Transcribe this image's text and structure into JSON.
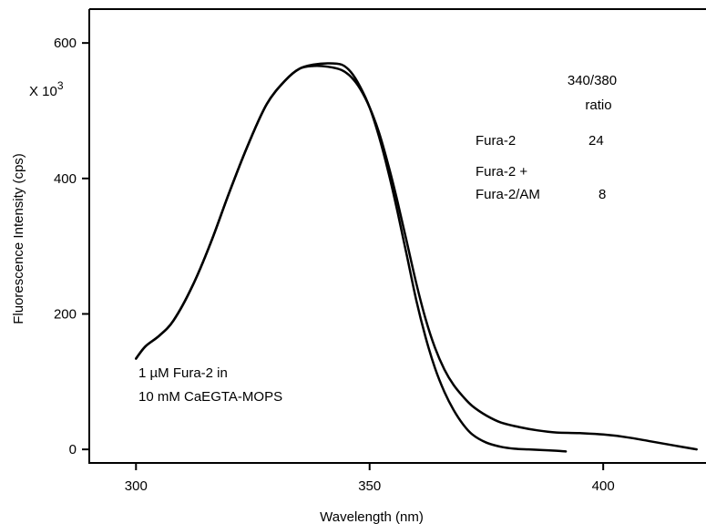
{
  "chart_data": {
    "type": "line",
    "xlabel": "Wavelength  (nm)",
    "ylabel": "Fluorescence Intensity (cps)",
    "y_multiplier_label": "X 10",
    "y_multiplier_exp": "3",
    "xlim": [
      290,
      422
    ],
    "ylim": [
      -20,
      650
    ],
    "x_ticks": [
      300,
      350,
      400
    ],
    "x_tick_labels": [
      "300",
      "350",
      "400"
    ],
    "y_ticks": [
      0,
      200,
      400,
      600
    ],
    "y_tick_labels": [
      "0",
      "200",
      "400",
      "600"
    ],
    "grid": false,
    "series": [
      {
        "x": [
          300,
          302,
          305,
          308,
          312,
          316,
          320,
          324,
          328,
          332,
          335,
          338,
          341,
          344,
          346,
          348,
          350,
          352,
          354,
          356,
          358,
          360,
          362,
          364,
          366,
          368,
          370,
          372,
          375,
          378,
          381,
          384,
          387,
          390,
          392
        ],
        "y": [
          134,
          152,
          168,
          190,
          240,
          305,
          380,
          450,
          510,
          545,
          562,
          568,
          570,
          568,
          557,
          535,
          505,
          462,
          410,
          350,
          285,
          220,
          165,
          120,
          85,
          58,
          37,
          22,
          10,
          4,
          1,
          0,
          -1,
          -2,
          -3
        ]
      },
      {
        "x": [
          300,
          302,
          305,
          308,
          312,
          316,
          320,
          324,
          328,
          332,
          335,
          338,
          341,
          344,
          346,
          348,
          350,
          352,
          354,
          356,
          358,
          360,
          362,
          364,
          366,
          368,
          370,
          372,
          375,
          378,
          382,
          386,
          390,
          395,
          400,
          405,
          410,
          415,
          420
        ],
        "y": [
          134,
          152,
          168,
          190,
          240,
          305,
          380,
          450,
          510,
          545,
          562,
          566,
          565,
          560,
          550,
          532,
          505,
          468,
          420,
          365,
          305,
          245,
          192,
          150,
          118,
          95,
          78,
          64,
          50,
          40,
          33,
          28,
          25,
          24,
          22,
          18,
          12,
          6,
          0
        ]
      }
    ],
    "annotations": {
      "sample_line1": "1 µM Fura-2 in",
      "sample_line2": "10 mM CaEGTA-MOPS",
      "ratio_header1": "340/380",
      "ratio_header2": "ratio",
      "row1_name": "Fura-2",
      "row1_value": "24",
      "row2_name_line1": "Fura-2 +",
      "row2_name_line2": "Fura-2/AM",
      "row2_value": "8"
    }
  }
}
